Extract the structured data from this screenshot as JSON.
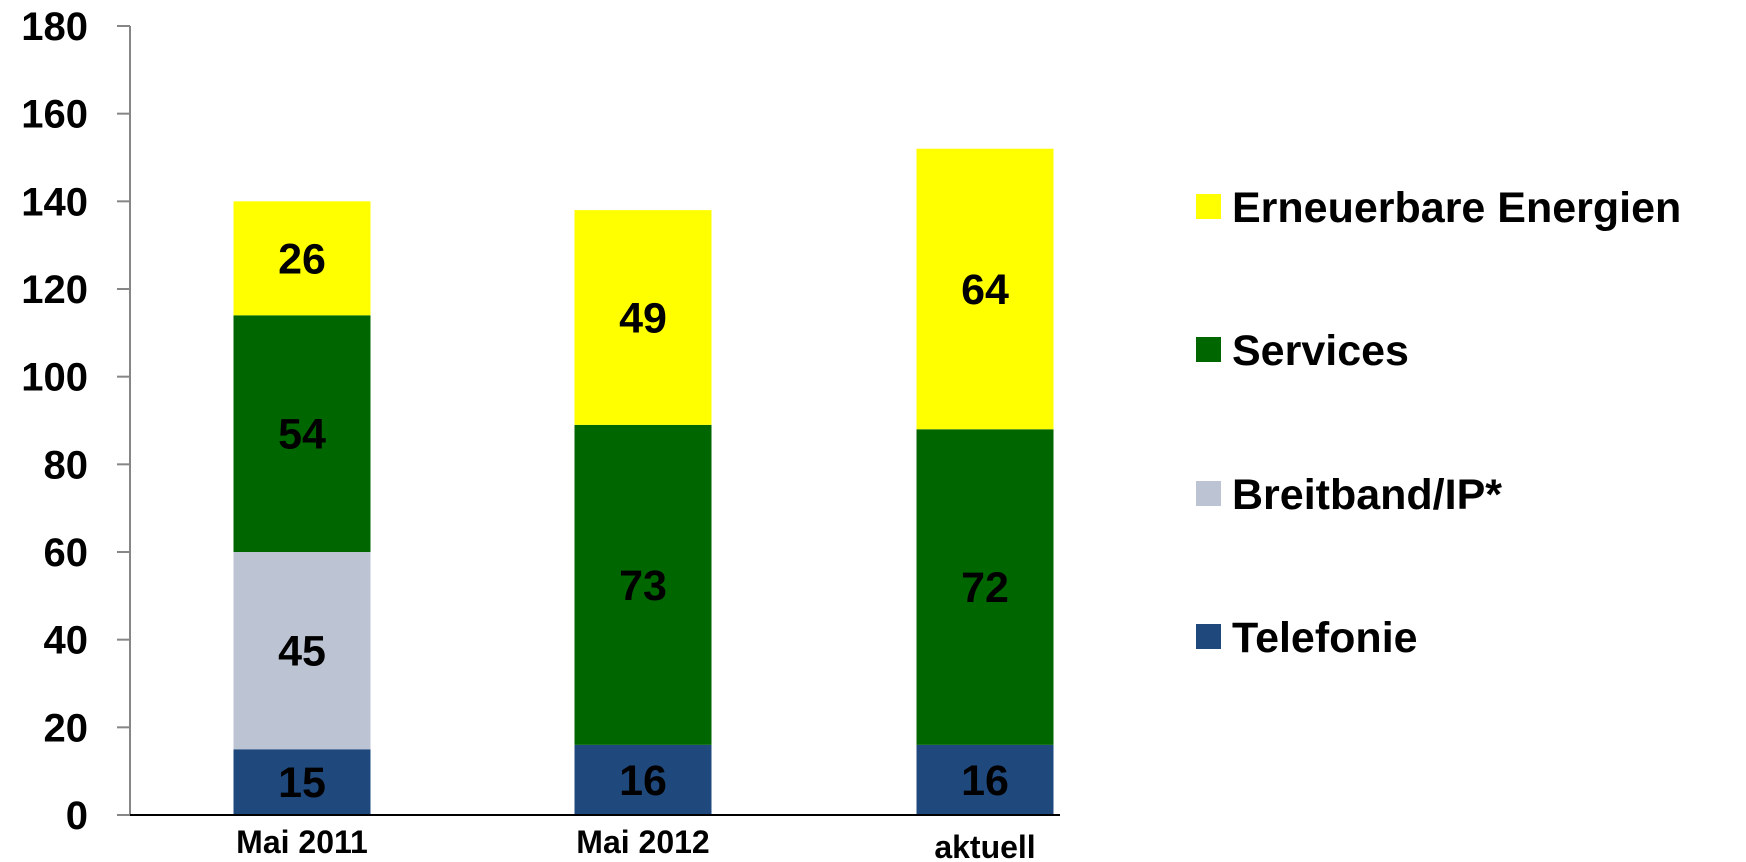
{
  "chart_data": {
    "type": "bar",
    "stacked": true,
    "categories": [
      "Mai 2011",
      "Mai 2012",
      "aktuell"
    ],
    "series": [
      {
        "name": "Telefonie",
        "color": "#1F497D",
        "values": [
          15,
          16,
          16
        ]
      },
      {
        "name": "Breitband/IP*",
        "color": "#BCC3D3",
        "values": [
          45,
          null,
          null
        ]
      },
      {
        "name": "Services",
        "color": "#006600",
        "values": [
          54,
          73,
          72
        ]
      },
      {
        "name": "Erneuerbare Energien",
        "color": "#FFFF00",
        "values": [
          26,
          49,
          64
        ]
      }
    ],
    "data_labels": [
      [
        "15",
        "16",
        "16"
      ],
      [
        "45",
        "",
        ""
      ],
      [
        "54",
        "73",
        "72"
      ],
      [
        "26",
        "49",
        "64"
      ]
    ],
    "ylim": [
      0,
      180
    ],
    "yticks": [
      0,
      20,
      40,
      60,
      80,
      100,
      120,
      140,
      160,
      180
    ],
    "ytick_labels": [
      "0",
      "20",
      "40",
      "60",
      "80",
      "100",
      "120",
      "140",
      "160",
      "180"
    ],
    "grid": false,
    "legend_placement": "right",
    "legend_order": [
      "Erneuerbare Energien",
      "Services",
      "Breitband/IP*",
      "Telefonie"
    ]
  }
}
